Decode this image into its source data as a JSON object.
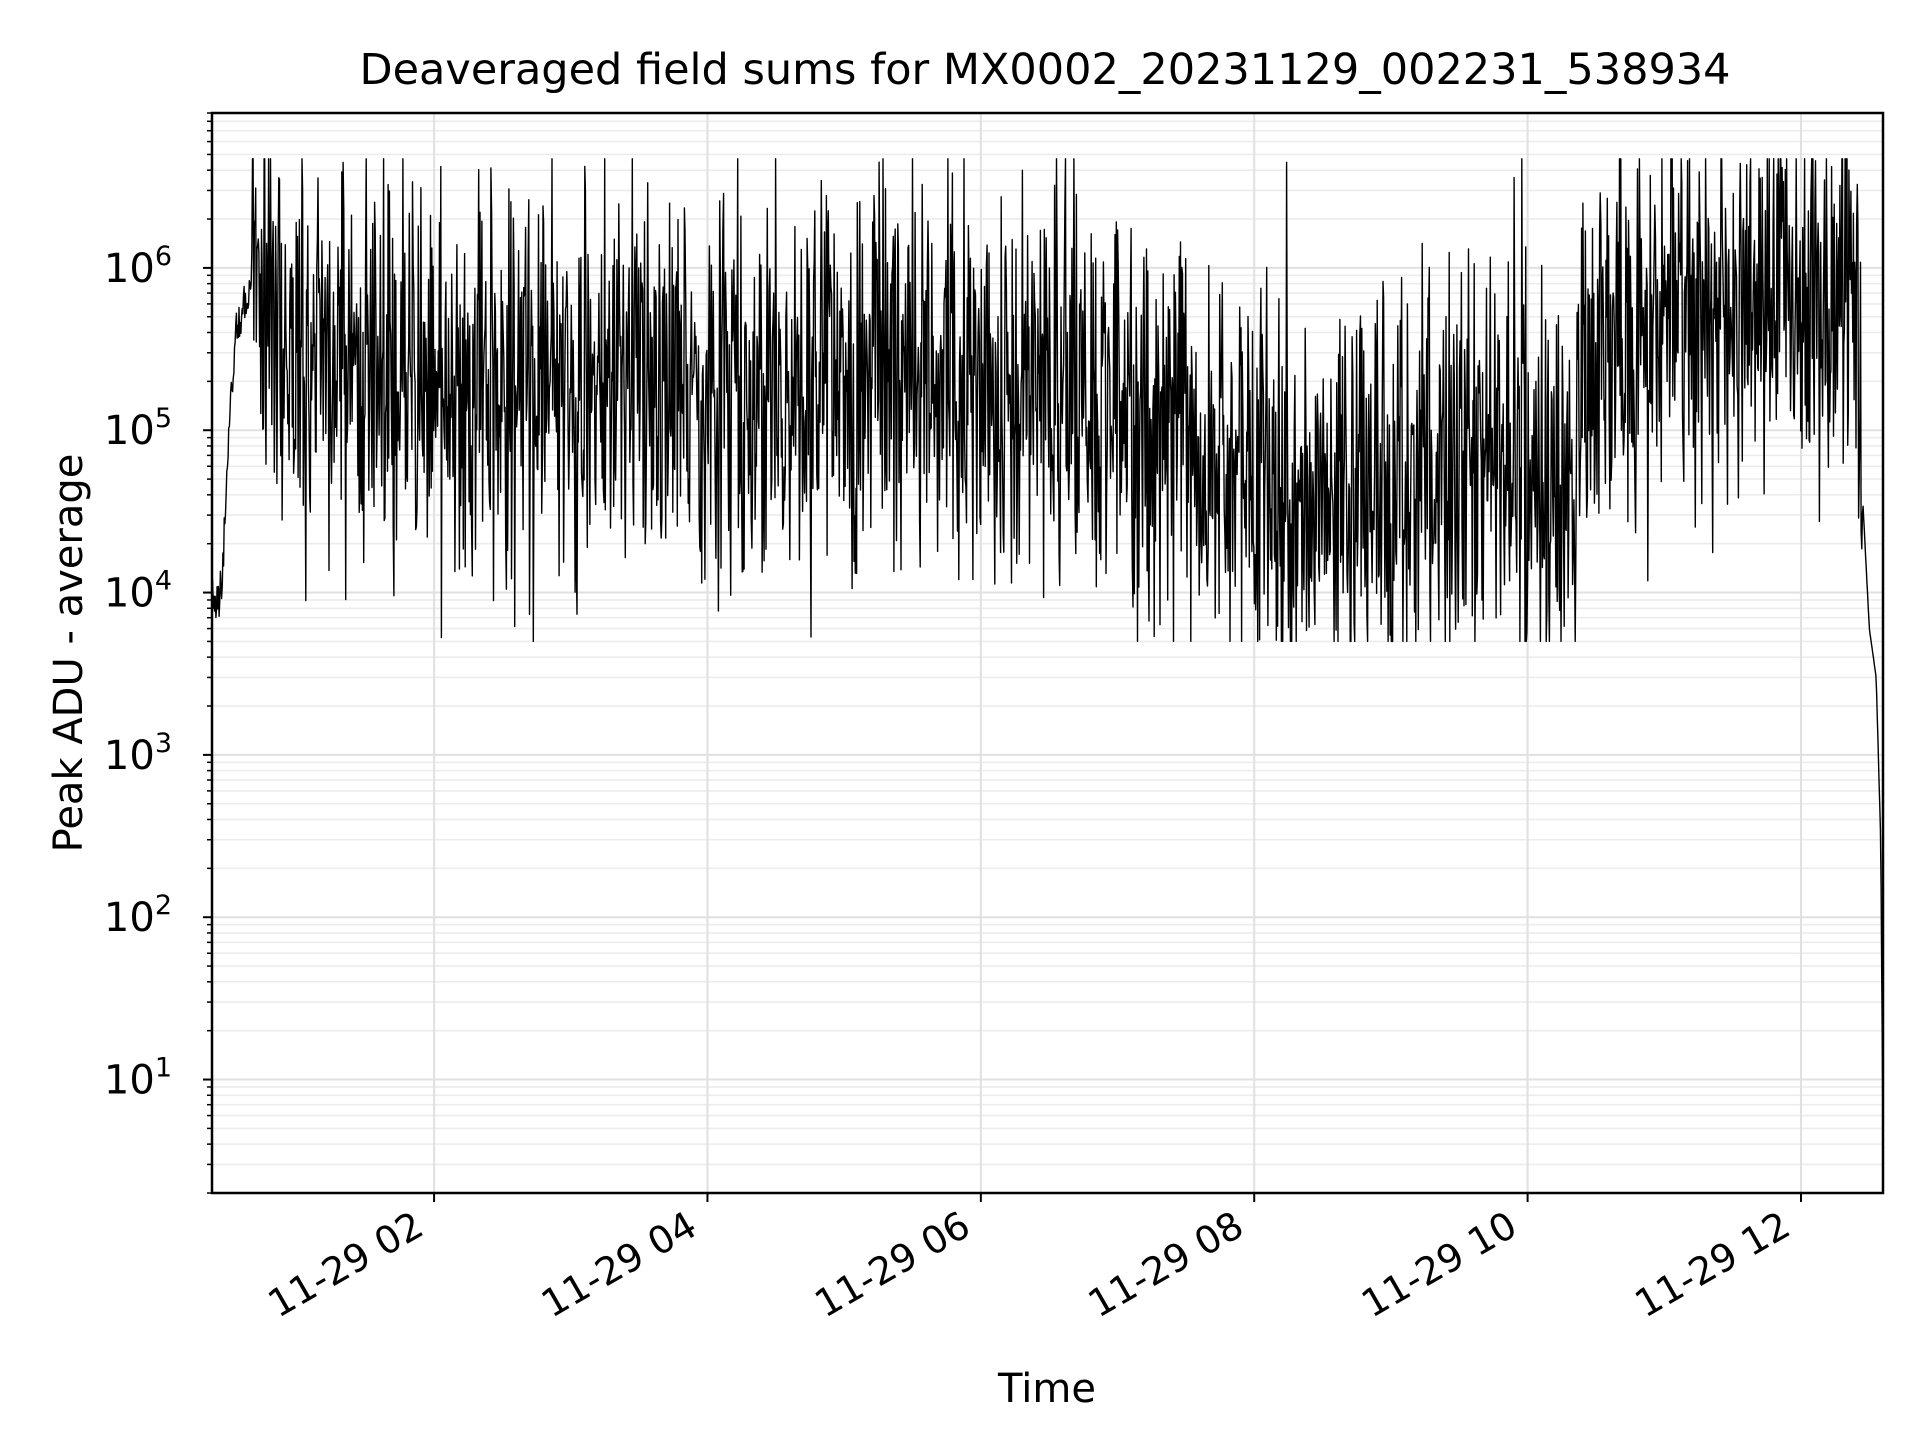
{
  "chart_data": {
    "type": "line",
    "title": "Deaveraged field sums for MX0002_20231129_002231_538934",
    "xlabel": "Time",
    "ylabel": "Peak ADU - average",
    "yscale": "log",
    "ylim": [
      2,
      9000000
    ],
    "xlim": [
      "2023-11-29T00:22:31",
      "2023-11-29T12:36:00"
    ],
    "grid": true,
    "line_color": "#000000",
    "x_ticks": [
      {
        "t": "2023-11-29T02:00:00",
        "label": "11-29 02"
      },
      {
        "t": "2023-11-29T04:00:00",
        "label": "11-29 04"
      },
      {
        "t": "2023-11-29T06:00:00",
        "label": "11-29 06"
      },
      {
        "t": "2023-11-29T08:00:00",
        "label": "11-29 08"
      },
      {
        "t": "2023-11-29T10:00:00",
        "label": "11-29 10"
      },
      {
        "t": "2023-11-29T12:00:00",
        "label": "11-29 12"
      }
    ],
    "y_ticks": [
      {
        "value": 10,
        "base": "10",
        "exp": "1"
      },
      {
        "value": 100,
        "base": "10",
        "exp": "2"
      },
      {
        "value": 1000,
        "base": "10",
        "exp": "3"
      },
      {
        "value": 10000,
        "base": "10",
        "exp": "4"
      },
      {
        "value": 100000,
        "base": "10",
        "exp": "5"
      },
      {
        "value": 1000000,
        "base": "10",
        "exp": "6"
      }
    ],
    "series": [
      {
        "x": [
          "2023-11-29T00:22:31",
          "2023-11-29T00:25:00",
          "2023-11-29T00:27:00",
          "2023-11-29T00:30:00",
          "2023-11-29T00:33:00",
          "2023-11-29T00:37:00",
          "2023-11-29T00:40:00",
          "2023-11-29T00:45:00",
          "2023-11-29T00:50:00",
          "2023-11-29T00:55:00",
          "2023-11-29T01:00:00",
          "2023-11-29T01:15:00",
          "2023-11-29T01:30:00",
          "2023-11-29T02:00:00",
          "2023-11-29T02:30:00",
          "2023-11-29T03:00:00",
          "2023-11-29T03:30:00",
          "2023-11-29T04:00:00",
          "2023-11-29T04:30:00",
          "2023-11-29T05:00:00",
          "2023-11-29T05:30:00",
          "2023-11-29T06:00:00",
          "2023-11-29T06:30:00",
          "2023-11-29T07:00:00",
          "2023-11-29T07:30:00",
          "2023-11-29T08:00:00",
          "2023-11-29T08:30:00",
          "2023-11-29T09:00:00",
          "2023-11-29T09:30:00",
          "2023-11-29T10:00:00",
          "2023-11-29T10:22:00",
          "2023-11-29T10:25:00",
          "2023-11-29T10:45:00",
          "2023-11-29T11:00:00",
          "2023-11-29T11:30:00",
          "2023-11-29T12:00:00",
          "2023-11-29T12:20:00",
          "2023-11-29T12:25:00",
          "2023-11-29T12:27:00",
          "2023-11-29T12:30:00",
          "2023-11-29T12:33:00",
          "2023-11-29T12:35:00",
          "2023-11-29T12:36:00"
        ],
        "y": [
          10000,
          8000,
          12000,
          100000,
          400000,
          650000,
          750000,
          550000,
          400000,
          250000,
          200000,
          250000,
          200000,
          170000,
          150000,
          160000,
          200000,
          180000,
          160000,
          200000,
          240000,
          200000,
          180000,
          120000,
          90000,
          45000,
          30000,
          40000,
          60000,
          50000,
          45000,
          300000,
          400000,
          500000,
          550000,
          700000,
          600000,
          500000,
          40000,
          6000,
          3000,
          300,
          4
        ],
        "noise_decades": 1.3,
        "spike_max": 4700000,
        "noise_min": 5000
      }
    ]
  }
}
